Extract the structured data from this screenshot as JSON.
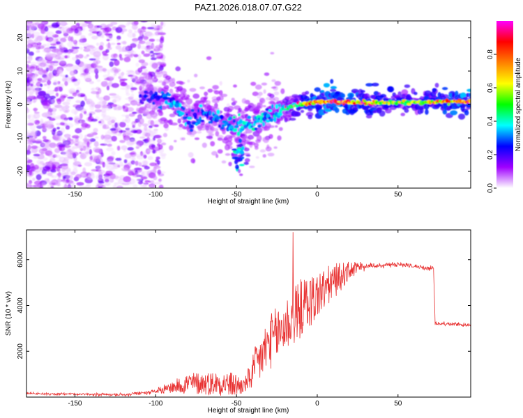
{
  "title": "PAZ1.2026.018.07.07.G22",
  "chart_data": [
    {
      "type": "heatmap",
      "name": "spectrogram",
      "xlabel": "Height of straight line (km)",
      "ylabel": "Frequency (Hz)",
      "xlim": [
        -180,
        95
      ],
      "ylim": [
        -25,
        25
      ],
      "xticks": [
        -150,
        -100,
        -50,
        0,
        50
      ],
      "yticks": [
        -20,
        -10,
        0,
        10,
        20
      ],
      "colorbar": {
        "label": "Normalized spectral amplitude",
        "range": [
          0,
          1
        ],
        "ticks": [
          0.0,
          0.2,
          0.4,
          0.6,
          0.8
        ],
        "colormap": [
          "#ffffff",
          "#a000ff",
          "#0000ff",
          "#00ffff",
          "#00ff00",
          "#ffff00",
          "#ff8000",
          "#ff0000",
          "#ff00ff"
        ]
      },
      "ridge": [
        {
          "x": -105,
          "f": 2,
          "a": 0.22
        },
        {
          "x": -95,
          "f": 1.5,
          "a": 0.28
        },
        {
          "x": -85,
          "f": -1,
          "a": 0.32
        },
        {
          "x": -78,
          "f": -5,
          "a": 0.3
        },
        {
          "x": -70,
          "f": -3,
          "a": 0.3
        },
        {
          "x": -62,
          "f": -4,
          "a": 0.3
        },
        {
          "x": -55,
          "f": -6,
          "a": 0.35
        },
        {
          "x": -48,
          "f": -6,
          "a": 0.35
        },
        {
          "x": -40,
          "f": -6,
          "a": 0.35
        },
        {
          "x": -33,
          "f": -4,
          "a": 0.33
        },
        {
          "x": -28,
          "f": -3,
          "a": 0.32
        },
        {
          "x": -22,
          "f": -1.5,
          "a": 0.38
        },
        {
          "x": -15,
          "f": -0.5,
          "a": 0.45
        },
        {
          "x": -8,
          "f": 0.3,
          "a": 0.6
        },
        {
          "x": 0,
          "f": 0.7,
          "a": 0.75
        },
        {
          "x": 10,
          "f": 1,
          "a": 0.8
        },
        {
          "x": 20,
          "f": 0.6,
          "a": 0.75
        },
        {
          "x": 40,
          "f": 0.5,
          "a": 0.6
        },
        {
          "x": 60,
          "f": 0.6,
          "a": 0.55
        },
        {
          "x": 80,
          "f": 0.8,
          "a": 0.7
        },
        {
          "x": 95,
          "f": 0.8,
          "a": 0.8
        }
      ],
      "satellite_blob": {
        "x": -48,
        "f": -15,
        "a": 0.4
      }
    },
    {
      "type": "line",
      "name": "snr",
      "xlabel": "Height of straight line (km)",
      "ylabel": "SNR (10 * v/v)",
      "xlim": [
        -180,
        95
      ],
      "ylim": [
        0,
        7300
      ],
      "xticks": [
        -150,
        -100,
        -50,
        0,
        50
      ],
      "yticks": [
        2000,
        4000,
        6000
      ],
      "color": "#e83030",
      "series_profile": [
        {
          "x": -180,
          "y": 150,
          "spread": 60
        },
        {
          "x": -120,
          "y": 100,
          "spread": 60
        },
        {
          "x": -100,
          "y": 250,
          "spread": 100
        },
        {
          "x": -90,
          "y": 350,
          "spread": 250
        },
        {
          "x": -80,
          "y": 450,
          "spread": 500
        },
        {
          "x": -70,
          "y": 450,
          "spread": 500
        },
        {
          "x": -60,
          "y": 450,
          "spread": 550
        },
        {
          "x": -50,
          "y": 350,
          "spread": 550
        },
        {
          "x": -45,
          "y": 400,
          "spread": 300
        },
        {
          "x": -38,
          "y": 1000,
          "spread": 1000
        },
        {
          "x": -30,
          "y": 2000,
          "spread": 1200
        },
        {
          "x": -20,
          "y": 2700,
          "spread": 1300
        },
        {
          "x": -10,
          "y": 3500,
          "spread": 1300
        },
        {
          "x": 0,
          "y": 4100,
          "spread": 1100
        },
        {
          "x": 10,
          "y": 4800,
          "spread": 800
        },
        {
          "x": 20,
          "y": 5400,
          "spread": 400
        },
        {
          "x": 30,
          "y": 5700,
          "spread": 150
        },
        {
          "x": 50,
          "y": 5800,
          "spread": 120
        },
        {
          "x": 72,
          "y": 5600,
          "spread": 100
        },
        {
          "x": 73,
          "y": 3200,
          "spread": 80
        },
        {
          "x": 95,
          "y": 3150,
          "spread": 80
        }
      ],
      "spike": {
        "x": -15,
        "y": 7200
      },
      "sample_step": 0.25
    }
  ]
}
